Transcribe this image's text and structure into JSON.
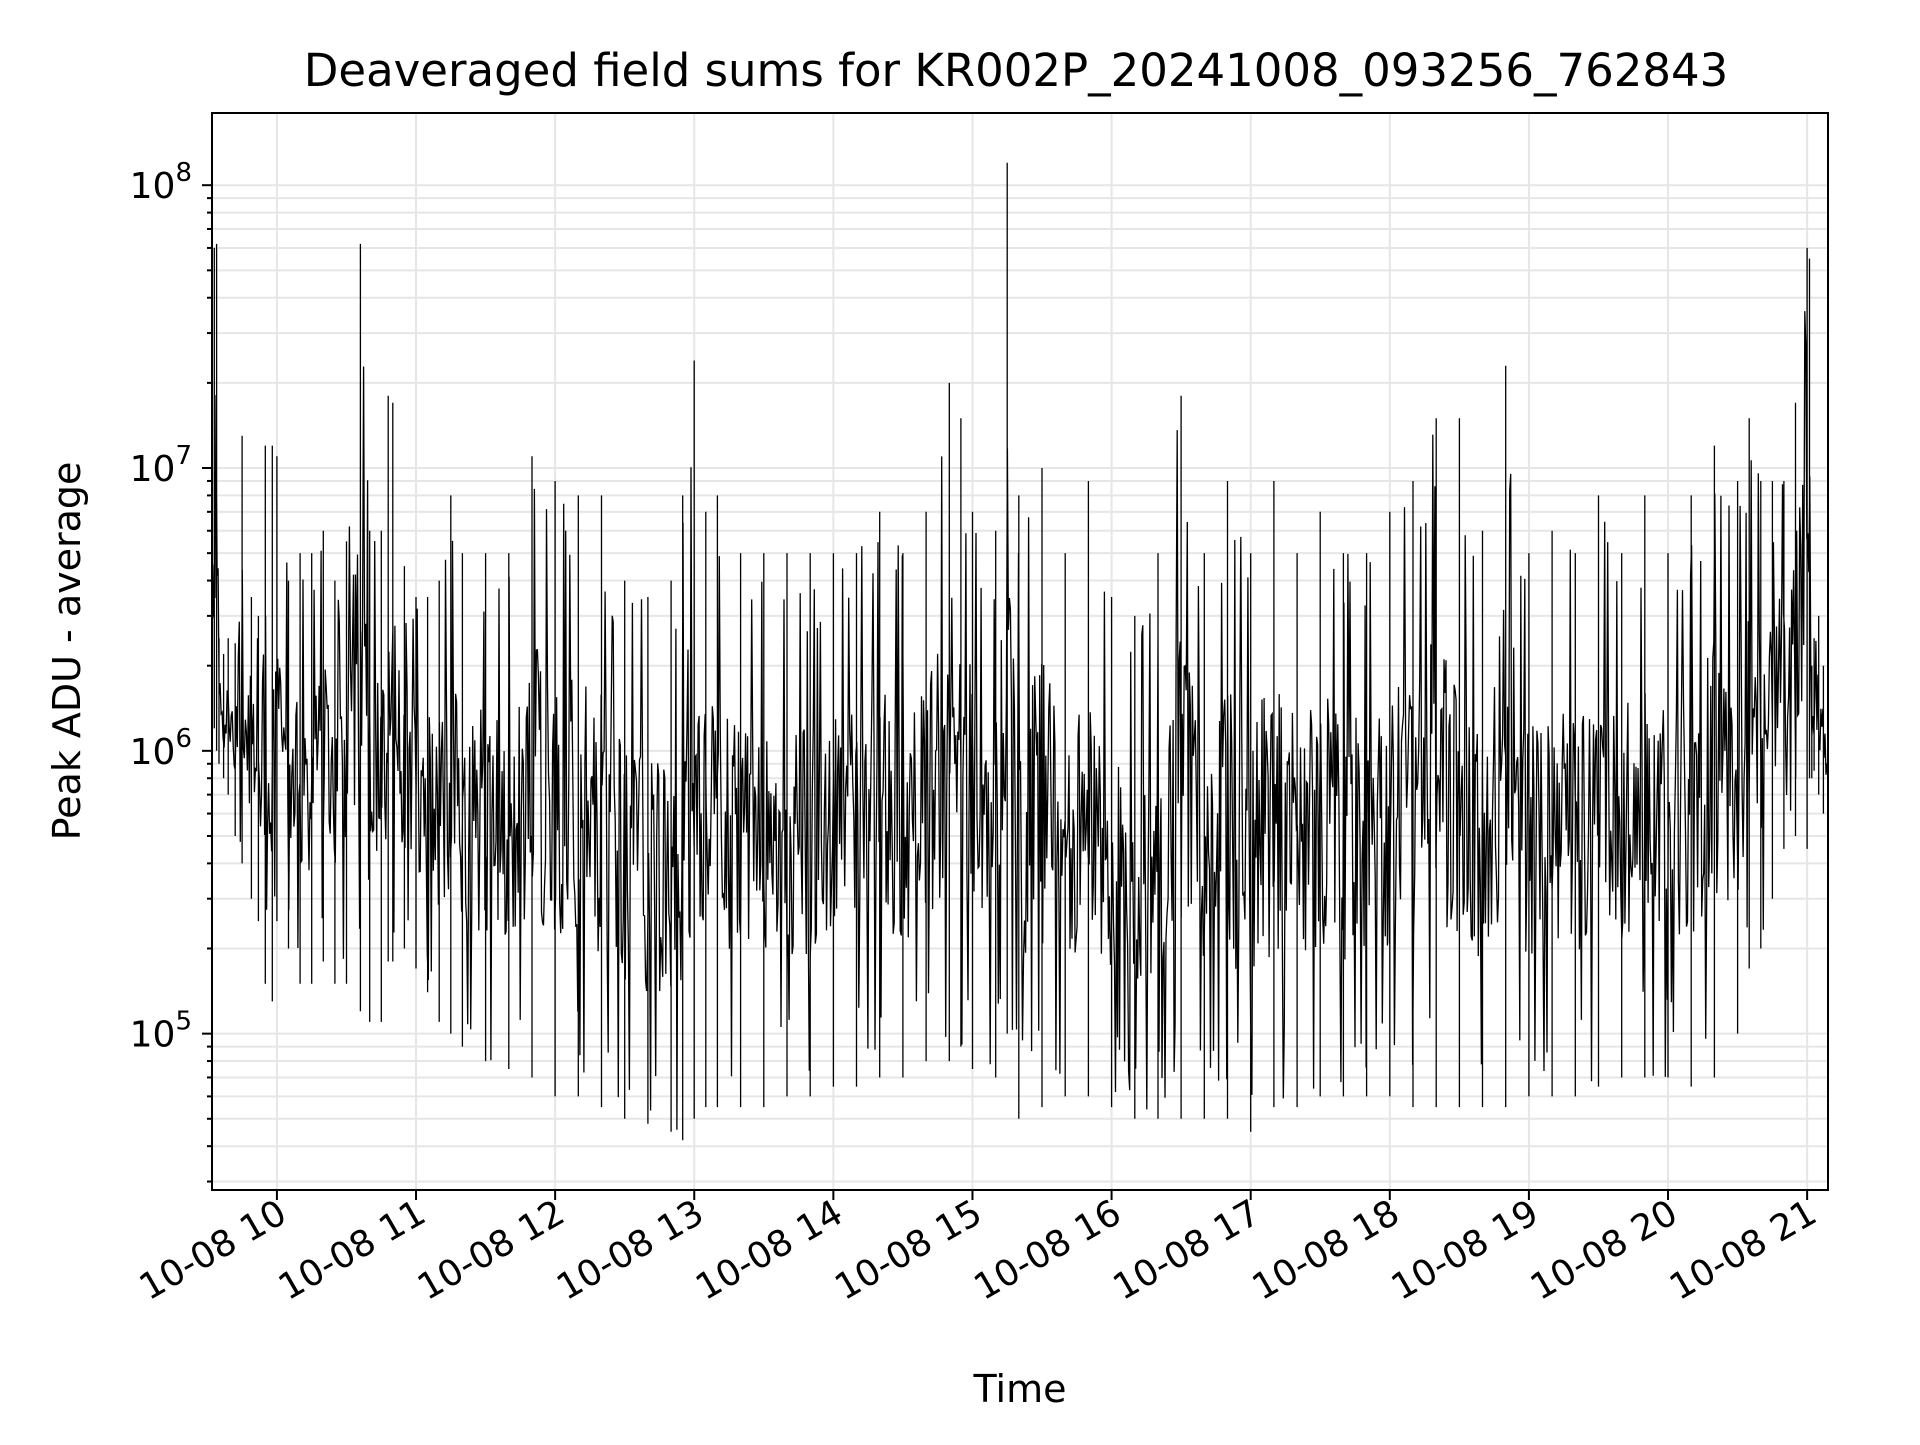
{
  "chart_data": {
    "type": "line",
    "title": "Deaveraged field sums for KR002P_20241008_093256_762843",
    "xlabel": "Time",
    "ylabel": "Peak ADU - average",
    "y_scale": "log",
    "ylim": [
      28000,
      180000000
    ],
    "xlim": [
      "2024-10-08 09:32",
      "2024-10-08 21:09"
    ],
    "x_tick_values": [
      "2024-10-08 10:00",
      "2024-10-08 11:00",
      "2024-10-08 12:00",
      "2024-10-08 13:00",
      "2024-10-08 14:00",
      "2024-10-08 15:00",
      "2024-10-08 16:00",
      "2024-10-08 17:00",
      "2024-10-08 18:00",
      "2024-10-08 19:00",
      "2024-10-08 20:00",
      "2024-10-08 21:00"
    ],
    "x_tick_labels": [
      "10-08 10",
      "10-08 11",
      "10-08 12",
      "10-08 13",
      "10-08 14",
      "10-08 15",
      "10-08 16",
      "10-08 17",
      "10-08 18",
      "10-08 19",
      "10-08 20",
      "10-08 21"
    ],
    "y_tick_values": [
      100000,
      1000000,
      10000000,
      100000000
    ],
    "y_tick_labels": [
      {
        "base": "10",
        "exp": "5"
      },
      {
        "base": "10",
        "exp": "6"
      },
      {
        "base": "10",
        "exp": "7"
      },
      {
        "base": "10",
        "exp": "8"
      }
    ],
    "grid": true,
    "legend": "none",
    "line_color": "#000000",
    "series": [
      {
        "x": [
          "2024-10-08 09:32",
          "2024-10-08 09:33",
          "2024-10-08 09:34",
          "2024-10-08 09:35",
          "2024-10-08 09:37",
          "2024-10-08 09:39",
          "2024-10-08 09:42",
          "2024-10-08 09:45",
          "2024-10-08 09:49",
          "2024-10-08 09:52",
          "2024-10-08 09:55",
          "2024-10-08 09:58",
          "2024-10-08 10:00",
          "2024-10-08 10:05",
          "2024-10-08 10:10",
          "2024-10-08 10:15",
          "2024-10-08 10:20",
          "2024-10-08 10:25",
          "2024-10-08 10:30",
          "2024-10-08 10:36",
          "2024-10-08 10:40",
          "2024-10-08 10:45",
          "2024-10-08 10:48",
          "2024-10-08 10:50",
          "2024-10-08 10:55",
          "2024-10-08 11:00",
          "2024-10-08 11:05",
          "2024-10-08 11:10",
          "2024-10-08 11:15",
          "2024-10-08 11:20",
          "2024-10-08 11:30",
          "2024-10-08 11:40",
          "2024-10-08 11:50",
          "2024-10-08 12:00",
          "2024-10-08 12:10",
          "2024-10-08 12:20",
          "2024-10-08 12:30",
          "2024-10-08 12:40",
          "2024-10-08 12:50",
          "2024-10-08 12:55",
          "2024-10-08 13:00",
          "2024-10-08 13:05",
          "2024-10-08 13:10",
          "2024-10-08 13:20",
          "2024-10-08 13:30",
          "2024-10-08 13:40",
          "2024-10-08 13:50",
          "2024-10-08 14:00",
          "2024-10-08 14:10",
          "2024-10-08 14:20",
          "2024-10-08 14:30",
          "2024-10-08 14:40",
          "2024-10-08 14:50",
          "2024-10-08 14:55",
          "2024-10-08 15:00",
          "2024-10-08 15:10",
          "2024-10-08 15:15",
          "2024-10-08 15:20",
          "2024-10-08 15:30",
          "2024-10-08 15:40",
          "2024-10-08 15:50",
          "2024-10-08 16:00",
          "2024-10-08 16:10",
          "2024-10-08 16:20",
          "2024-10-08 16:30",
          "2024-10-08 16:40",
          "2024-10-08 16:50",
          "2024-10-08 17:00",
          "2024-10-08 17:10",
          "2024-10-08 17:20",
          "2024-10-08 17:30",
          "2024-10-08 17:40",
          "2024-10-08 17:50",
          "2024-10-08 18:00",
          "2024-10-08 18:10",
          "2024-10-08 18:20",
          "2024-10-08 18:30",
          "2024-10-08 18:40",
          "2024-10-08 18:50",
          "2024-10-08 19:00",
          "2024-10-08 19:10",
          "2024-10-08 19:20",
          "2024-10-08 19:30",
          "2024-10-08 19:40",
          "2024-10-08 19:50",
          "2024-10-08 20:00",
          "2024-10-08 20:10",
          "2024-10-08 20:20",
          "2024-10-08 20:30",
          "2024-10-08 20:35",
          "2024-10-08 20:40",
          "2024-10-08 20:45",
          "2024-10-08 20:50",
          "2024-10-08 20:55",
          "2024-10-08 21:00",
          "2024-10-08 21:01",
          "2024-10-08 21:02",
          "2024-10-08 21:03",
          "2024-10-08 21:05",
          "2024-10-08 21:07",
          "2024-10-08 21:09"
        ],
        "values_high": [
          4000000,
          60000000,
          62000000,
          2500000,
          2200000,
          2500000,
          2400000,
          13000000,
          3500000,
          3000000,
          12000000,
          12000000,
          11000000,
          4000000,
          5000000,
          5000000,
          6000000,
          4000000,
          5500000,
          62000000,
          6000000,
          6000000,
          18000000,
          17000000,
          4500000,
          3500000,
          3500000,
          4000000,
          8000000,
          5000000,
          5000000,
          5000000,
          11000000,
          9000000,
          8000000,
          8000000,
          4000000,
          3500000,
          4000000,
          8000000,
          24000000,
          7000000,
          8000000,
          5000000,
          5000000,
          5000000,
          5000000,
          5000000,
          5000000,
          7000000,
          5000000,
          7000000,
          20000000,
          15000000,
          7000000,
          6000000,
          120000000,
          8000000,
          10000000,
          5000000,
          9000000,
          3500000,
          3000000,
          5000000,
          18000000,
          5000000,
          9000000,
          5000000,
          9000000,
          5000000,
          7000000,
          5000000,
          5000000,
          7000000,
          9000000,
          15000000,
          15000000,
          6000000,
          23000000,
          5000000,
          6000000,
          5000000,
          8000000,
          5000000,
          8000000,
          5000000,
          8000000,
          12000000,
          9000000,
          15000000,
          9000000,
          9000000,
          9000000,
          17000000,
          60000000,
          55000000,
          2000000,
          2500000,
          3000000,
          2000000,
          1200000
        ],
        "values_low": [
          1500000,
          1200000,
          1000000,
          900000,
          800000,
          700000,
          500000,
          400000,
          300000,
          250000,
          150000,
          130000,
          250000,
          200000,
          150000,
          150000,
          180000,
          150000,
          150000,
          120000,
          110000,
          110000,
          180000,
          180000,
          200000,
          170000,
          140000,
          110000,
          100000,
          90000,
          80000,
          75000,
          70000,
          60000,
          60000,
          55000,
          50000,
          48000,
          45000,
          42000,
          50000,
          55000,
          55000,
          55000,
          55000,
          60000,
          60000,
          65000,
          65000,
          70000,
          70000,
          80000,
          80000,
          90000,
          75000,
          70000,
          100000,
          50000,
          55000,
          60000,
          60000,
          55000,
          50000,
          50000,
          50000,
          50000,
          50000,
          45000,
          55000,
          55000,
          60000,
          60000,
          60000,
          60000,
          55000,
          55000,
          55000,
          55000,
          55000,
          60000,
          60000,
          60000,
          65000,
          70000,
          70000,
          70000,
          65000,
          70000,
          100000,
          170000,
          200000,
          300000,
          450000,
          500000,
          450000,
          800000,
          800000,
          850000,
          700000,
          600000,
          600000
        ]
      }
    ]
  }
}
